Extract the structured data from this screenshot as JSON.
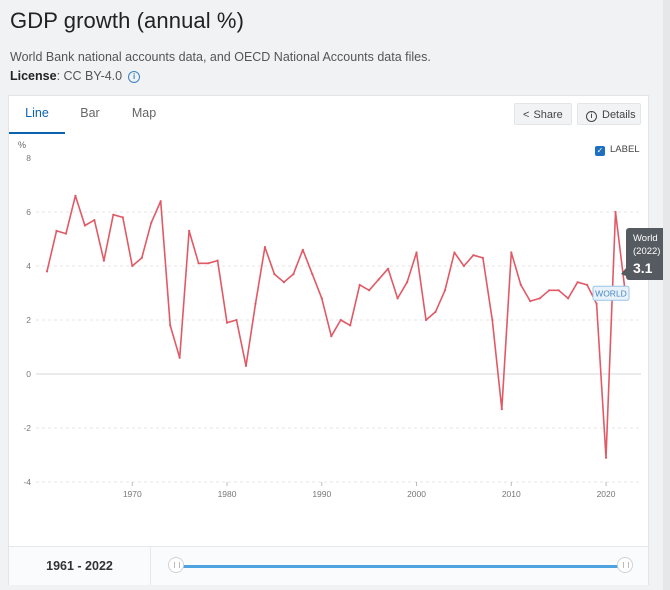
{
  "header": {
    "title": "GDP growth (annual %)",
    "source": "World Bank national accounts data, and OECD National Accounts data files.",
    "license_label": "License",
    "license_value": ": CC BY-4.0"
  },
  "tabs": [
    "Line",
    "Bar",
    "Map"
  ],
  "toolbar": {
    "share": "Share",
    "details": "Details"
  },
  "label_toggle": "LABEL",
  "tooltip": {
    "line1": "World",
    "line2": "(2022)",
    "value": "3.1"
  },
  "series_tag": "WORLD",
  "range_label": "1961 - 2022",
  "colors": {
    "line": "#e05a66",
    "accent": "#0a63b0",
    "tooltip_bg": "#555b61"
  },
  "chart_data": {
    "type": "line",
    "ylabel": "%",
    "ylim": [
      -4,
      8
    ],
    "yticks": [
      -4,
      -2,
      0,
      2,
      4,
      6,
      8
    ],
    "xlim": [
      1961,
      2022
    ],
    "xticks": [
      1970,
      1980,
      1990,
      2000,
      2010,
      2020
    ],
    "grid": true,
    "series": [
      {
        "name": "WORLD",
        "x": [
          1961,
          1962,
          1963,
          1964,
          1965,
          1966,
          1967,
          1968,
          1969,
          1970,
          1971,
          1972,
          1973,
          1974,
          1975,
          1976,
          1977,
          1978,
          1979,
          1980,
          1981,
          1982,
          1983,
          1984,
          1985,
          1986,
          1987,
          1988,
          1989,
          1990,
          1991,
          1992,
          1993,
          1994,
          1995,
          1996,
          1997,
          1998,
          1999,
          2000,
          2001,
          2002,
          2003,
          2004,
          2005,
          2006,
          2007,
          2008,
          2009,
          2010,
          2011,
          2012,
          2013,
          2014,
          2015,
          2016,
          2017,
          2018,
          2019,
          2020,
          2021,
          2022
        ],
        "y": [
          3.8,
          5.3,
          5.2,
          6.6,
          5.5,
          5.7,
          4.2,
          5.9,
          5.8,
          4.0,
          4.3,
          5.6,
          6.4,
          1.8,
          0.6,
          5.3,
          4.1,
          4.1,
          4.2,
          1.9,
          2.0,
          0.3,
          2.6,
          4.7,
          3.7,
          3.4,
          3.7,
          4.6,
          3.7,
          2.8,
          1.4,
          2.0,
          1.8,
          3.3,
          3.1,
          3.5,
          3.9,
          2.8,
          3.4,
          4.5,
          2.0,
          2.3,
          3.1,
          4.5,
          4.0,
          4.4,
          4.3,
          2.0,
          -1.3,
          4.5,
          3.3,
          2.7,
          2.8,
          3.1,
          3.1,
          2.8,
          3.4,
          3.3,
          2.6,
          -3.1,
          6.0,
          3.1
        ]
      }
    ]
  }
}
